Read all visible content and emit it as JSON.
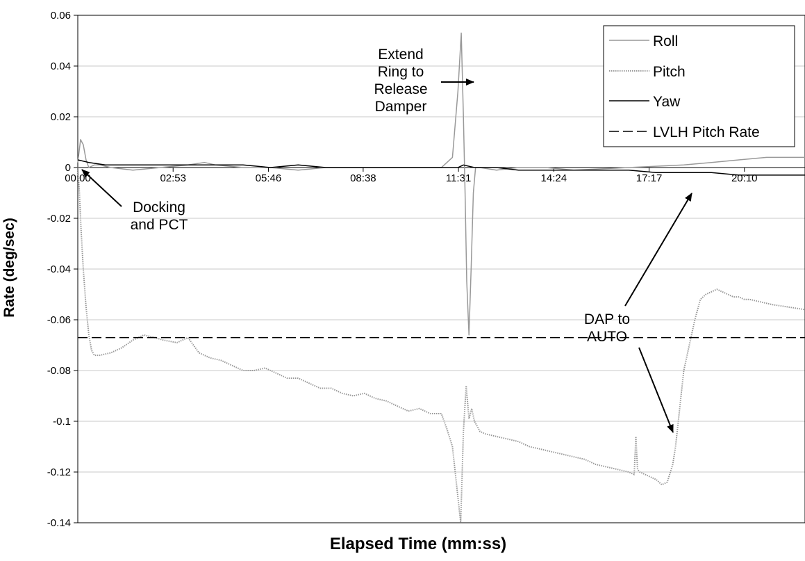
{
  "chart_data": {
    "type": "line",
    "title": "",
    "xlabel": "Elapsed Time (mm:ss)",
    "ylabel": "Rate (deg/sec)",
    "xlim": [
      0,
      1320
    ],
    "ylim": [
      -0.14,
      0.06
    ],
    "grid": "horizontal",
    "legend_position": "top-right",
    "y_ticks": [
      "0.06",
      "0.04",
      "0.02",
      "0",
      "-0.02",
      "-0.04",
      "-0.06",
      "-0.08",
      "-0.1",
      "-0.12",
      "-0.14"
    ],
    "y_tick_values": [
      0.06,
      0.04,
      0.02,
      0,
      -0.02,
      -0.04,
      -0.06,
      -0.08,
      -0.1,
      -0.12,
      -0.14
    ],
    "x_ticks": [
      "00:00",
      "02:53",
      "05:46",
      "08:38",
      "11:31",
      "14:24",
      "17:17",
      "20:10"
    ],
    "x_tick_seconds": [
      0,
      173,
      346,
      518,
      691,
      864,
      1037,
      1210
    ],
    "series": [
      {
        "name": "Roll",
        "color": "#999999",
        "style": "solid",
        "x": [
          0,
          5,
          10,
          15,
          20,
          30,
          40,
          60,
          100,
          150,
          200,
          230,
          250,
          300,
          350,
          400,
          450,
          500,
          560,
          620,
          660,
          680,
          690,
          696,
          700,
          703,
          706,
          710,
          714,
          718,
          722,
          730,
          760,
          800,
          850,
          900,
          1000,
          1100,
          1150,
          1200,
          1250,
          1320
        ],
        "y": [
          0.002,
          0.011,
          0.009,
          0.003,
          0.0,
          0.001,
          0.001,
          0.0,
          -0.001,
          0.0,
          0.001,
          0.002,
          0.001,
          0.0,
          0.0,
          -0.001,
          0.0,
          0.0,
          0.0,
          0.0,
          0.0,
          0.004,
          0.03,
          0.053,
          0.02,
          -0.01,
          -0.045,
          -0.066,
          -0.04,
          -0.01,
          0.0,
          0.0,
          -0.001,
          0.0,
          0.0,
          -0.001,
          0.0,
          0.001,
          0.002,
          0.003,
          0.004,
          0.004
        ]
      },
      {
        "name": "Pitch",
        "color": "#999999",
        "style": "dotted",
        "x": [
          0,
          3,
          6,
          10,
          15,
          20,
          25,
          30,
          40,
          60,
          80,
          100,
          120,
          140,
          155,
          180,
          200,
          220,
          240,
          260,
          280,
          300,
          320,
          340,
          360,
          380,
          400,
          420,
          440,
          460,
          480,
          500,
          520,
          540,
          560,
          580,
          600,
          620,
          640,
          660,
          670,
          680,
          690,
          695,
          700,
          705,
          710,
          715,
          720,
          725,
          730,
          740,
          760,
          780,
          800,
          820,
          840,
          860,
          880,
          900,
          920,
          940,
          960,
          980,
          1000,
          1010,
          1013,
          1016,
          1020,
          1030,
          1040,
          1050,
          1055,
          1060,
          1070,
          1080,
          1085,
          1090,
          1095,
          1100,
          1110,
          1120,
          1130,
          1140,
          1150,
          1160,
          1170,
          1180,
          1190,
          1200,
          1210,
          1220,
          1240,
          1260,
          1290,
          1320
        ],
        "y": [
          0.0,
          -0.01,
          -0.025,
          -0.04,
          -0.055,
          -0.066,
          -0.072,
          -0.074,
          -0.074,
          -0.073,
          -0.071,
          -0.068,
          -0.066,
          -0.067,
          -0.068,
          -0.069,
          -0.067,
          -0.073,
          -0.075,
          -0.076,
          -0.078,
          -0.08,
          -0.08,
          -0.079,
          -0.081,
          -0.083,
          -0.083,
          -0.085,
          -0.087,
          -0.087,
          -0.089,
          -0.09,
          -0.089,
          -0.091,
          -0.092,
          -0.094,
          -0.096,
          -0.095,
          -0.097,
          -0.097,
          -0.103,
          -0.11,
          -0.13,
          -0.14,
          -0.104,
          -0.086,
          -0.099,
          -0.095,
          -0.1,
          -0.102,
          -0.104,
          -0.105,
          -0.106,
          -0.107,
          -0.108,
          -0.11,
          -0.111,
          -0.112,
          -0.113,
          -0.114,
          -0.115,
          -0.117,
          -0.118,
          -0.119,
          -0.12,
          -0.121,
          -0.106,
          -0.119,
          -0.12,
          -0.121,
          -0.122,
          -0.123,
          -0.124,
          -0.125,
          -0.124,
          -0.117,
          -0.11,
          -0.1,
          -0.09,
          -0.08,
          -0.07,
          -0.06,
          -0.052,
          -0.05,
          -0.049,
          -0.048,
          -0.049,
          -0.05,
          -0.051,
          -0.051,
          -0.052,
          -0.052,
          -0.053,
          -0.054,
          -0.055,
          -0.056
        ]
      },
      {
        "name": "Yaw",
        "color": "#000000",
        "style": "solid",
        "x": [
          0,
          20,
          50,
          100,
          150,
          200,
          250,
          300,
          350,
          400,
          450,
          500,
          550,
          600,
          650,
          690,
          700,
          720,
          760,
          800,
          850,
          900,
          950,
          1000,
          1050,
          1100,
          1150,
          1200,
          1250,
          1320
        ],
        "y": [
          0.003,
          0.002,
          0.001,
          0.001,
          0.001,
          0.001,
          0.001,
          0.001,
          0.0,
          0.001,
          0.0,
          0.0,
          0.0,
          0.0,
          0.0,
          0.0,
          0.001,
          0.0,
          0.0,
          -0.001,
          -0.001,
          -0.001,
          -0.001,
          -0.001,
          -0.002,
          -0.002,
          -0.002,
          -0.003,
          -0.003,
          -0.003
        ]
      },
      {
        "name": "LVLH Pitch Rate",
        "color": "#000000",
        "style": "dashed",
        "x": [
          0,
          1320
        ],
        "y": [
          -0.067,
          -0.067
        ]
      }
    ],
    "annotations": [
      {
        "id": "extend",
        "lines": [
          "Extend",
          "Ring to",
          "Release",
          "Damper"
        ]
      },
      {
        "id": "docking",
        "lines": [
          "Docking",
          "and PCT"
        ]
      },
      {
        "id": "dap",
        "lines": [
          "DAP to",
          "AUTO"
        ]
      }
    ]
  }
}
